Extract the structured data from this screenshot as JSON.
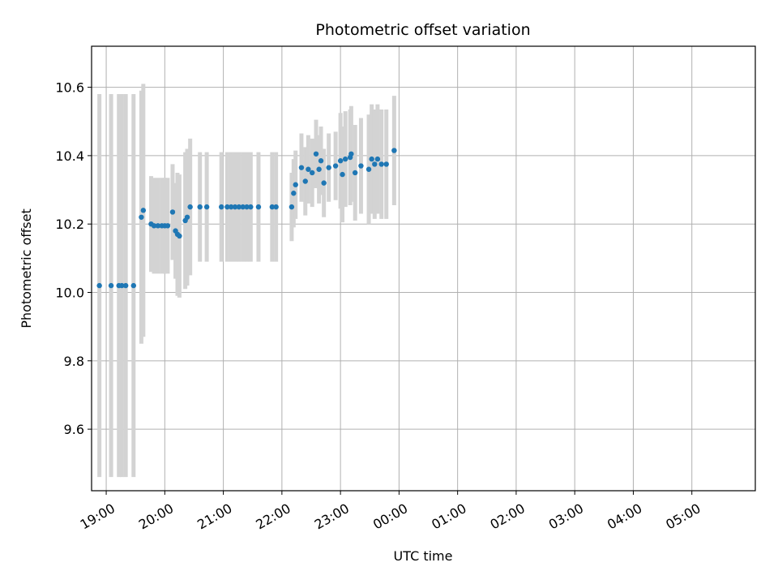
{
  "chart_data": {
    "type": "scatter",
    "title": "Photometric offset variation",
    "xlabel": "UTC time",
    "ylabel": "Photometric offset",
    "x_ticks": [
      "19:00",
      "20:00",
      "21:00",
      "22:00",
      "23:00",
      "00:00",
      "01:00",
      "02:00",
      "03:00",
      "04:00",
      "05:00"
    ],
    "y_ticks": [
      "9.6",
      "9.8",
      "10.0",
      "10.2",
      "10.4",
      "10.6"
    ],
    "xlim": [
      "18:45",
      "06:05"
    ],
    "ylim": [
      9.42,
      10.72
    ],
    "grid": true,
    "errorbar_color": "#d3d3d3",
    "marker_color": "#1f77b4",
    "series": [
      {
        "x": [
          "18:53",
          "19:05",
          "19:13",
          "19:16",
          "19:20",
          "19:28",
          "19:36",
          "19:38",
          "19:46",
          "19:49",
          "19:53",
          "19:57",
          "20:00",
          "20:03",
          "20:08",
          "20:11",
          "20:13",
          "20:15",
          "20:21",
          "20:23",
          "20:26",
          "20:36",
          "20:43",
          "20:58",
          "21:04",
          "21:08",
          "21:12",
          "21:16",
          "21:20",
          "21:24",
          "21:28",
          "21:36",
          "21:50",
          "21:54",
          "22:10",
          "22:12",
          "22:14",
          "22:20",
          "22:24",
          "22:27",
          "22:31",
          "22:35",
          "22:38",
          "22:40",
          "22:43",
          "22:48",
          "22:55",
          "23:00",
          "23:02",
          "23:05",
          "23:10",
          "23:11",
          "23:15",
          "23:21",
          "23:29",
          "23:32",
          "23:35",
          "23:38",
          "23:42",
          "23:47",
          "23:55"
        ],
        "y": [
          10.02,
          10.02,
          10.02,
          10.02,
          10.02,
          10.02,
          10.22,
          10.24,
          10.2,
          10.195,
          10.195,
          10.195,
          10.195,
          10.195,
          10.235,
          10.18,
          10.17,
          10.165,
          10.21,
          10.22,
          10.25,
          10.25,
          10.25,
          10.25,
          10.25,
          10.25,
          10.25,
          10.25,
          10.25,
          10.25,
          10.25,
          10.25,
          10.25,
          10.25,
          10.25,
          10.29,
          10.315,
          10.365,
          10.325,
          10.36,
          10.35,
          10.405,
          10.36,
          10.385,
          10.32,
          10.365,
          10.37,
          10.385,
          10.345,
          10.39,
          10.395,
          10.405,
          10.35,
          10.37,
          10.36,
          10.39,
          10.375,
          10.39,
          10.375,
          10.375,
          10.415
        ]
      }
    ]
  }
}
